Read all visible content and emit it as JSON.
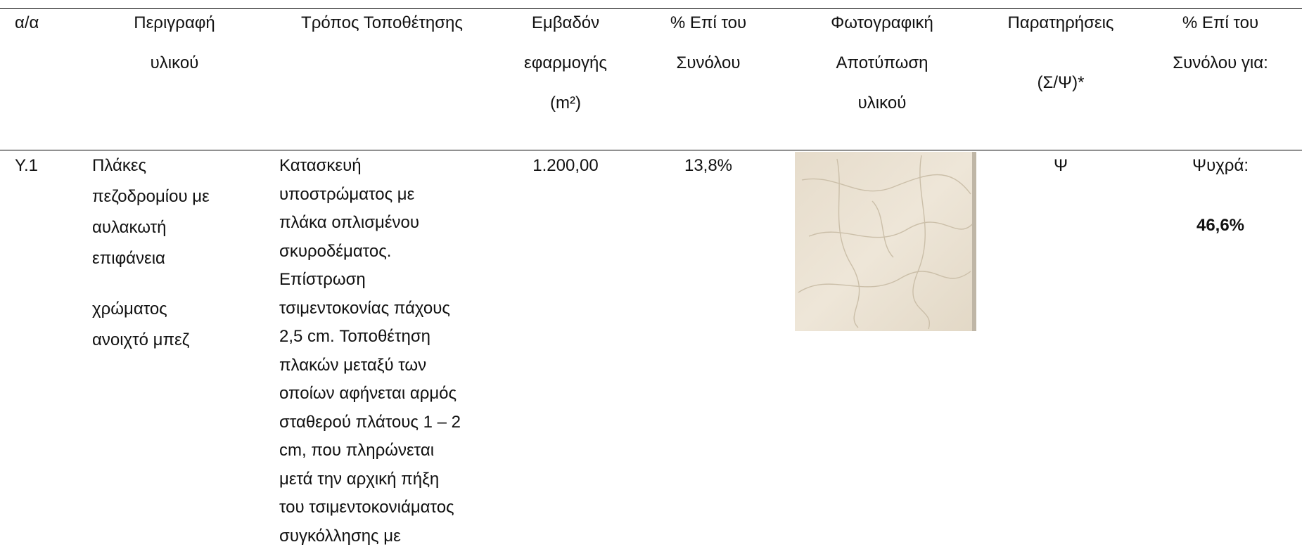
{
  "table": {
    "headers": [
      [
        "α/α"
      ],
      [
        "Περιγραφή",
        "υλικού"
      ],
      [
        "Τρόπος Τοποθέτησης"
      ],
      [
        "Εμβαδόν",
        "εφαρμογής",
        "(m²)"
      ],
      [
        "% Επί του",
        "Συνόλου"
      ],
      [
        "Φωτογραφική",
        "Αποτύπωση",
        "υλικού"
      ],
      [
        "Παρατηρήσεις",
        "(Σ/Ψ)*"
      ],
      [
        "% Επί του",
        "Συνόλου για:"
      ]
    ],
    "rows": [
      {
        "id": "Υ.1",
        "description": [
          [
            "Πλάκες",
            "πεζοδρομίου με",
            "αυλακωτή",
            "επιφάνεια"
          ],
          [
            "χρώματος",
            "ανοιχτό μπεζ"
          ]
        ],
        "method": [
          "Κατασκευή",
          "υποστρώματος με",
          "πλάκα οπλισμένου",
          "σκυροδέματος.",
          "Επίστρωση",
          "τσιμεντοκονίας  πάχους",
          "2,5 cm.  Τοποθέτηση",
          "πλακών μεταξύ των",
          "οποίων αφήνεται αρμός",
          "σταθερού πλάτους 1 – 2",
          "cm, που πληρώνεται",
          "μετά την αρχική πήξη",
          "του τσιμεντοκονιάματος",
          "συγκόλλησης με"
        ],
        "area": "1.200,00",
        "share": "13,8%",
        "remarks": "Ψ",
        "climate_label": "Ψυχρά:",
        "climate_share": "46,6%"
      }
    ]
  }
}
